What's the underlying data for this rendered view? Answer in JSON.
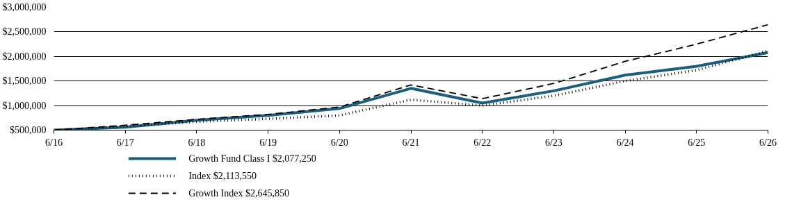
{
  "chart_data": {
    "type": "line",
    "categories": [
      "6/16",
      "6/17",
      "6/18",
      "6/19",
      "6/20",
      "6/21",
      "6/22",
      "6/23",
      "6/24",
      "6/25",
      "6/26"
    ],
    "series": [
      {
        "name": "Growth Fund Class I $2,077,250",
        "color": "#1a5e80",
        "line_style": "solid",
        "values": [
          500000,
          560000,
          700000,
          800000,
          940000,
          1350000,
          1050000,
          1300000,
          1620000,
          1800000,
          2077250
        ]
      },
      {
        "name": "Index $2,113,550",
        "color": "#000000",
        "line_style": "dotted",
        "values": [
          500000,
          580000,
          670000,
          730000,
          800000,
          1120000,
          1000000,
          1200000,
          1500000,
          1720000,
          2113550
        ]
      },
      {
        "name": "Growth Index $2,645,850",
        "color": "#000000",
        "line_style": "dashed",
        "values": [
          500000,
          600000,
          720000,
          820000,
          970000,
          1420000,
          1140000,
          1450000,
          1900000,
          2250000,
          2645850
        ]
      }
    ],
    "ylim": [
      500000,
      3000000
    ],
    "yticks": [
      {
        "value": 500000,
        "label": "$500,000"
      },
      {
        "value": 1000000,
        "label": "$1,000,000"
      },
      {
        "value": 1500000,
        "label": "$1,500,000"
      },
      {
        "value": 2000000,
        "label": "$2,000,000"
      },
      {
        "value": 2500000,
        "label": "$2,500,000"
      },
      {
        "value": 3000000,
        "label": "$3,000,000"
      }
    ],
    "grid": "y",
    "legend": "bottom left",
    "marker": "none"
  }
}
